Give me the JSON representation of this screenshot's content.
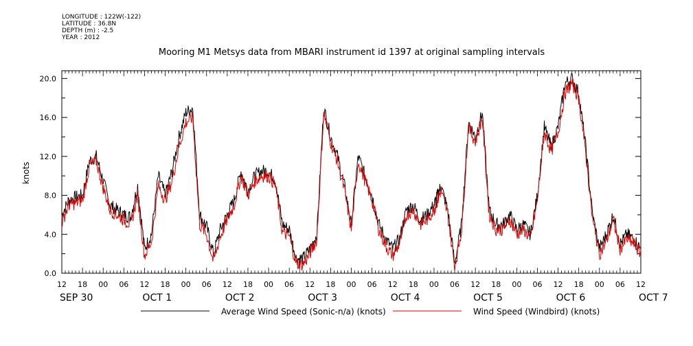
{
  "header": {
    "longitude": "LONGITUDE : 122W(-122)",
    "latitude": "LATITUDE : 36.8N",
    "depth": "DEPTH (m) : -2.5",
    "year": "YEAR : 2012"
  },
  "colors": {
    "series_1": "#000000",
    "series_2": "#dd0000",
    "axis": "#000000"
  },
  "chart_data": {
    "type": "line",
    "title": "Mooring M1 Metsys data from MBARI instrument id 1397 at original sampling intervals",
    "xlabel": "",
    "ylabel": "knots",
    "ylim": [
      0,
      20.8
    ],
    "yticks": [
      0.0,
      4.0,
      8.0,
      12.0,
      16.0,
      20.0
    ],
    "ytick_labels": [
      "0.0",
      "4.0",
      "8.0",
      "12.0",
      "16.0",
      "20.0"
    ],
    "xlim": [
      0,
      168
    ],
    "xtick_hours": [
      0,
      6,
      12,
      18,
      24,
      30,
      36,
      42,
      48,
      54,
      60,
      66,
      72,
      78,
      84,
      90,
      96,
      102,
      108,
      114,
      120,
      126,
      132,
      138,
      144,
      150,
      156,
      162,
      168
    ],
    "xtick_labels": [
      "12",
      "18",
      "00",
      "06",
      "12",
      "18",
      "00",
      "06",
      "12",
      "18",
      "00",
      "06",
      "12",
      "18",
      "00",
      "06",
      "12",
      "18",
      "00",
      "06",
      "12",
      "18",
      "00",
      "06",
      "12",
      "18",
      "00",
      "06",
      "12"
    ],
    "day_labels": [
      {
        "hour": 0,
        "text": "SEP 30"
      },
      {
        "hour": 24,
        "text": "OCT  1"
      },
      {
        "hour": 48,
        "text": "OCT  2"
      },
      {
        "hour": 72,
        "text": "OCT  3"
      },
      {
        "hour": 96,
        "text": "OCT  4"
      },
      {
        "hour": 120,
        "text": "OCT  5"
      },
      {
        "hour": 144,
        "text": "OCT  6"
      },
      {
        "hour": 168,
        "text": "OCT  7"
      }
    ],
    "grid": false,
    "legend_position": "bottom",
    "series": [
      {
        "name": "Average Wind Speed (Sonic-n/a) (knots)",
        "color": "#000000",
        "x": [
          0,
          2,
          4,
          6,
          8,
          10,
          12,
          14,
          16,
          18,
          20,
          22,
          24,
          26,
          28,
          30,
          32,
          34,
          36,
          38,
          40,
          42,
          44,
          46,
          48,
          50,
          52,
          54,
          56,
          58,
          60,
          62,
          64,
          66,
          68,
          70,
          72,
          74,
          76,
          78,
          80,
          82,
          84,
          86,
          88,
          90,
          92,
          94,
          96,
          98,
          100,
          102,
          104,
          106,
          108,
          109,
          110,
          112,
          114,
          116,
          118,
          120,
          122,
          124,
          126,
          128,
          130,
          132,
          134,
          136,
          138,
          140,
          142,
          144,
          146,
          148,
          150,
          152,
          154,
          156,
          158,
          160,
          162,
          164,
          166,
          168
        ],
        "y": [
          6.0,
          7.5,
          7.8,
          8.0,
          11.5,
          12.0,
          9.5,
          7.0,
          6.5,
          6.0,
          5.8,
          9.0,
          2.5,
          4.0,
          10.0,
          8.0,
          10.5,
          14.0,
          16.5,
          17.0,
          6.0,
          4.8,
          2.0,
          4.5,
          6.0,
          7.5,
          10.5,
          8.5,
          10.0,
          10.5,
          10.5,
          9.5,
          5.0,
          4.5,
          1.5,
          1.5,
          2.5,
          4.0,
          17.0,
          14.0,
          12.0,
          9.0,
          5.0,
          12.0,
          10.0,
          8.0,
          5.0,
          3.5,
          2.5,
          3.5,
          6.5,
          7.0,
          5.5,
          6.0,
          7.0,
          8.0,
          9.0,
          6.5,
          1.0,
          5.0,
          15.5,
          14.0,
          16.5,
          6.5,
          5.0,
          5.0,
          6.0,
          4.5,
          5.0,
          4.0,
          8.0,
          15.0,
          13.0,
          15.0,
          19.5,
          20.0,
          18.5,
          13.0,
          6.0,
          2.5,
          4.0,
          6.0,
          3.0,
          4.0,
          3.5,
          2.5
        ]
      },
      {
        "name": "Wind Speed (Windbird) (knots)",
        "color": "#dd0000",
        "x": [
          0,
          2,
          4,
          6,
          8,
          10,
          12,
          14,
          16,
          18,
          20,
          22,
          24,
          26,
          28,
          30,
          32,
          34,
          36,
          38,
          40,
          42,
          44,
          46,
          48,
          50,
          52,
          54,
          56,
          58,
          60,
          62,
          64,
          66,
          68,
          70,
          72,
          74,
          76,
          78,
          80,
          82,
          84,
          86,
          88,
          90,
          92,
          94,
          96,
          98,
          100,
          102,
          104,
          106,
          108,
          109,
          110,
          112,
          114,
          116,
          118,
          120,
          122,
          124,
          126,
          128,
          130,
          132,
          134,
          136,
          138,
          140,
          142,
          144,
          146,
          148,
          150,
          152,
          154,
          156,
          158,
          160,
          162,
          164,
          166,
          168
        ],
        "y": [
          5.2,
          7.0,
          7.2,
          7.5,
          11.0,
          11.5,
          8.8,
          6.5,
          6.0,
          5.5,
          5.0,
          8.0,
          1.8,
          3.2,
          9.0,
          7.5,
          9.5,
          13.0,
          15.5,
          16.0,
          5.0,
          4.0,
          1.2,
          3.8,
          5.5,
          7.0,
          10.0,
          8.0,
          9.5,
          10.0,
          10.0,
          9.0,
          4.2,
          3.8,
          1.0,
          0.9,
          2.0,
          3.5,
          16.5,
          13.5,
          11.5,
          8.5,
          4.5,
          11.5,
          9.5,
          7.5,
          4.5,
          2.8,
          1.8,
          3.0,
          6.0,
          6.5,
          5.0,
          5.5,
          6.5,
          7.5,
          8.5,
          6.0,
          0.6,
          4.5,
          15.0,
          13.5,
          16.0,
          6.0,
          4.5,
          4.5,
          5.5,
          4.0,
          4.5,
          3.5,
          7.5,
          14.5,
          12.5,
          14.5,
          18.5,
          19.5,
          18.0,
          12.5,
          5.5,
          2.0,
          3.2,
          5.5,
          2.5,
          3.5,
          3.0,
          2.0
        ]
      }
    ]
  }
}
